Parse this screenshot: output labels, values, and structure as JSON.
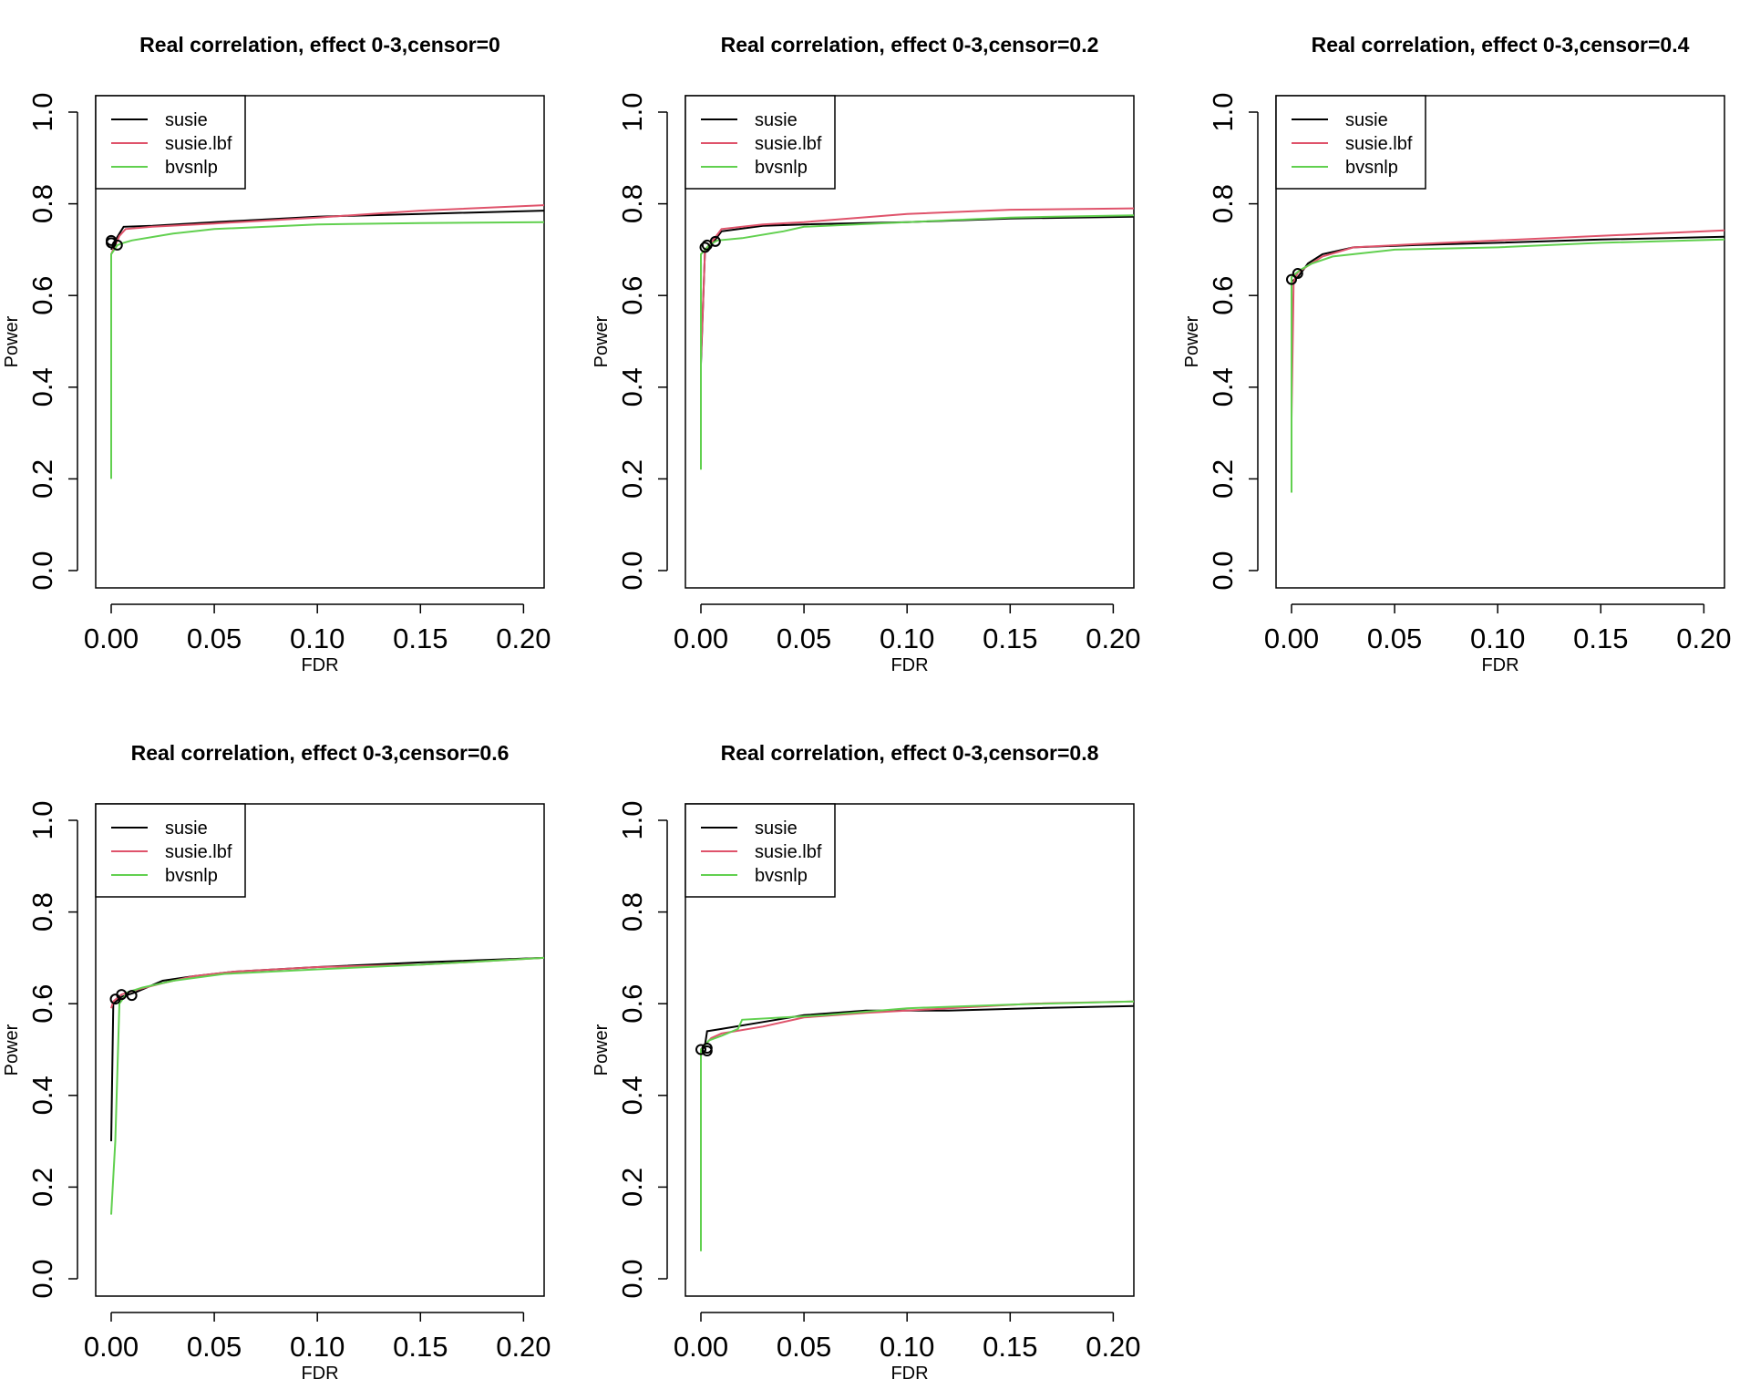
{
  "chart_data": [
    {
      "type": "line",
      "title": "Real correlation, effect 0-3,censor=0",
      "xlabel": "FDR",
      "ylabel": "Power",
      "xlim": [
        0,
        0.21
      ],
      "ylim": [
        0,
        1.0
      ],
      "xticks": [
        "0.00",
        "0.05",
        "0.10",
        "0.15",
        "0.20"
      ],
      "yticks": [
        "0.0",
        "0.2",
        "0.4",
        "0.6",
        "0.8",
        "1.0"
      ],
      "legend": "top-left",
      "series": [
        {
          "name": "susie",
          "color": "#000000",
          "x": [
            0,
            0.002,
            0.004,
            0.006,
            0.02,
            0.05,
            0.1,
            0.15,
            0.21
          ],
          "y": [
            0.7,
            0.72,
            0.735,
            0.75,
            0.752,
            0.76,
            0.772,
            0.778,
            0.785
          ]
        },
        {
          "name": "susie.lbf",
          "color": "#DF536B",
          "x": [
            0,
            0.002,
            0.004,
            0.007,
            0.02,
            0.05,
            0.1,
            0.15,
            0.21
          ],
          "y": [
            0.69,
            0.71,
            0.73,
            0.745,
            0.75,
            0.757,
            0.77,
            0.785,
            0.797
          ]
        },
        {
          "name": "bvsnlp",
          "color": "#61D04F",
          "x": [
            0,
            0,
            0.003,
            0.006,
            0.01,
            0.03,
            0.05,
            0.1,
            0.15,
            0.21
          ],
          "y": [
            0.2,
            0.69,
            0.71,
            0.715,
            0.72,
            0.735,
            0.745,
            0.755,
            0.758,
            0.76
          ]
        }
      ],
      "points": [
        {
          "x": 0,
          "y": 0.72
        },
        {
          "x": 0,
          "y": 0.715
        },
        {
          "x": 0.003,
          "y": 0.71
        }
      ]
    },
    {
      "type": "line",
      "title": "Real correlation, effect 0-3,censor=0.2",
      "xlabel": "FDR",
      "ylabel": "Power",
      "xlim": [
        0,
        0.21
      ],
      "ylim": [
        0,
        1.0
      ],
      "xticks": [
        "0.00",
        "0.05",
        "0.10",
        "0.15",
        "0.20"
      ],
      "yticks": [
        "0.0",
        "0.2",
        "0.4",
        "0.6",
        "0.8",
        "1.0"
      ],
      "legend": "top-left",
      "series": [
        {
          "name": "susie",
          "color": "#000000",
          "x": [
            0,
            0.002,
            0.005,
            0.01,
            0.03,
            0.05,
            0.1,
            0.15,
            0.21
          ],
          "y": [
            0.45,
            0.7,
            0.71,
            0.74,
            0.752,
            0.755,
            0.76,
            0.768,
            0.772
          ]
        },
        {
          "name": "susie.lbf",
          "color": "#DF536B",
          "x": [
            0,
            0.002,
            0.005,
            0.01,
            0.03,
            0.05,
            0.1,
            0.15,
            0.21
          ],
          "y": [
            0.46,
            0.7,
            0.715,
            0.745,
            0.755,
            0.76,
            0.778,
            0.787,
            0.79
          ]
        },
        {
          "name": "bvsnlp",
          "color": "#61D04F",
          "x": [
            0,
            0,
            0.004,
            0.008,
            0.02,
            0.04,
            0.05,
            0.1,
            0.15,
            0.21
          ],
          "y": [
            0.22,
            0.69,
            0.71,
            0.72,
            0.725,
            0.74,
            0.75,
            0.76,
            0.77,
            0.775
          ]
        }
      ],
      "points": [
        {
          "x": 0.002,
          "y": 0.705
        },
        {
          "x": 0.003,
          "y": 0.71
        },
        {
          "x": 0.007,
          "y": 0.718
        }
      ]
    },
    {
      "type": "line",
      "title": "Real correlation, effect 0-3,censor=0.4",
      "xlabel": "FDR",
      "ylabel": "Power",
      "xlim": [
        0,
        0.21
      ],
      "ylim": [
        0,
        1.0
      ],
      "xticks": [
        "0.00",
        "0.05",
        "0.10",
        "0.15",
        "0.20"
      ],
      "yticks": [
        "0.0",
        "0.2",
        "0.4",
        "0.6",
        "0.8",
        "1.0"
      ],
      "legend": "top-left",
      "series": [
        {
          "name": "susie",
          "color": "#000000",
          "x": [
            0,
            0.003,
            0.008,
            0.015,
            0.03,
            0.06,
            0.1,
            0.15,
            0.21
          ],
          "y": [
            0.63,
            0.64,
            0.67,
            0.69,
            0.705,
            0.71,
            0.715,
            0.722,
            0.728
          ]
        },
        {
          "name": "susie.lbf",
          "color": "#DF536B",
          "x": [
            0,
            0.001,
            0.003,
            0.008,
            0.015,
            0.03,
            0.06,
            0.1,
            0.15,
            0.21
          ],
          "y": [
            0.33,
            0.63,
            0.65,
            0.665,
            0.685,
            0.705,
            0.712,
            0.72,
            0.73,
            0.742
          ]
        },
        {
          "name": "bvsnlp",
          "color": "#61D04F",
          "x": [
            0,
            0,
            0.004,
            0.01,
            0.02,
            0.03,
            0.05,
            0.1,
            0.15,
            0.21
          ],
          "y": [
            0.17,
            0.64,
            0.655,
            0.67,
            0.685,
            0.69,
            0.7,
            0.705,
            0.715,
            0.722
          ]
        }
      ],
      "points": [
        {
          "x": 0,
          "y": 0.635
        },
        {
          "x": 0.003,
          "y": 0.648
        }
      ]
    },
    {
      "type": "line",
      "title": "Real correlation, effect 0-3,censor=0.6",
      "xlabel": "FDR",
      "ylabel": "Power",
      "xlim": [
        0,
        0.21
      ],
      "ylim": [
        0,
        1.0
      ],
      "xticks": [
        "0.00",
        "0.05",
        "0.10",
        "0.15",
        "0.20"
      ],
      "yticks": [
        "0.0",
        "0.2",
        "0.4",
        "0.6",
        "0.8",
        "1.0"
      ],
      "legend": "top-left",
      "series": [
        {
          "name": "susie",
          "color": "#000000",
          "x": [
            0,
            0.001,
            0.005,
            0.012,
            0.025,
            0.04,
            0.06,
            0.1,
            0.15,
            0.21
          ],
          "y": [
            0.3,
            0.6,
            0.615,
            0.625,
            0.65,
            0.66,
            0.67,
            0.68,
            0.69,
            0.7
          ]
        },
        {
          "name": "susie.lbf",
          "color": "#DF536B",
          "x": [
            0,
            0.001,
            0.005,
            0.012,
            0.025,
            0.04,
            0.06,
            0.1,
            0.15,
            0.21
          ],
          "y": [
            0.59,
            0.605,
            0.62,
            0.63,
            0.645,
            0.66,
            0.67,
            0.68,
            0.685,
            0.7
          ]
        },
        {
          "name": "bvsnlp",
          "color": "#61D04F",
          "x": [
            0,
            0.002,
            0.004,
            0.008,
            0.015,
            0.03,
            0.055,
            0.1,
            0.15,
            0.21
          ],
          "y": [
            0.14,
            0.3,
            0.6,
            0.625,
            0.635,
            0.65,
            0.665,
            0.675,
            0.685,
            0.7
          ]
        }
      ],
      "points": [
        {
          "x": 0.002,
          "y": 0.61
        },
        {
          "x": 0.005,
          "y": 0.62
        },
        {
          "x": 0.01,
          "y": 0.618
        }
      ]
    },
    {
      "type": "line",
      "title": "Real correlation, effect 0-3,censor=0.8",
      "xlabel": "FDR",
      "ylabel": "Power",
      "xlim": [
        0,
        0.21
      ],
      "ylim": [
        0,
        1.0
      ],
      "xticks": [
        "0.00",
        "0.05",
        "0.10",
        "0.15",
        "0.20"
      ],
      "yticks": [
        "0.0",
        "0.2",
        "0.4",
        "0.6",
        "0.8",
        "1.0"
      ],
      "legend": "top-left",
      "series": [
        {
          "name": "susie",
          "color": "#000000",
          "x": [
            0,
            0.002,
            0.003,
            0.01,
            0.03,
            0.05,
            0.08,
            0.12,
            0.16,
            0.21
          ],
          "y": [
            0.5,
            0.51,
            0.54,
            0.545,
            0.56,
            0.575,
            0.585,
            0.585,
            0.59,
            0.595
          ]
        },
        {
          "name": "susie.lbf",
          "color": "#DF536B",
          "x": [
            0,
            0.002,
            0.005,
            0.01,
            0.03,
            0.05,
            0.08,
            0.12,
            0.16,
            0.21
          ],
          "y": [
            0.5,
            0.51,
            0.525,
            0.535,
            0.55,
            0.57,
            0.58,
            0.59,
            0.6,
            0.605
          ]
        },
        {
          "name": "bvsnlp",
          "color": "#61D04F",
          "x": [
            0,
            0,
            0.004,
            0.01,
            0.018,
            0.02,
            0.04,
            0.06,
            0.1,
            0.15,
            0.21
          ],
          "y": [
            0.06,
            0.5,
            0.52,
            0.53,
            0.545,
            0.565,
            0.57,
            0.575,
            0.59,
            0.598,
            0.605
          ]
        }
      ],
      "points": [
        {
          "x": 0,
          "y": 0.5
        },
        {
          "x": 0.003,
          "y": 0.503
        },
        {
          "x": 0.003,
          "y": 0.497
        }
      ]
    }
  ]
}
